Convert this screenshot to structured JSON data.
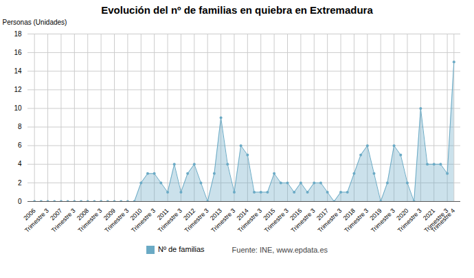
{
  "chart_data": {
    "type": "area",
    "title": "Evolución del nº de familias en quiebra en Extremadura",
    "ylabel": "Personas (Unidades)",
    "categories": [
      "2006",
      null,
      "Trimestre 3",
      null,
      "2007",
      null,
      "Trimestre 3",
      null,
      "2008",
      null,
      "Trimestre 3",
      null,
      "2009",
      null,
      "Trimestre 3",
      null,
      "2010",
      null,
      "Trimestre 3",
      null,
      "2011",
      null,
      "Trimestre 3",
      null,
      "2012",
      null,
      "Trimestre 3",
      null,
      "2013",
      null,
      "Trimestre 3",
      null,
      "2014",
      null,
      "Trimestre 3",
      null,
      "2015",
      null,
      "Trimestre 3",
      null,
      "2016",
      null,
      "Trimestre 3",
      null,
      "2017",
      null,
      "Trimestre 3",
      null,
      "2018",
      null,
      "Trimestre 3",
      null,
      "2019",
      null,
      "Trimestre 3",
      null,
      "2020",
      null,
      "Trimestre 3",
      null,
      "2021",
      null,
      "Trimestre 3",
      "Trimestre 4"
    ],
    "series": [
      {
        "name": "Nº de familias",
        "color": "#6aaac5",
        "values": [
          0,
          0,
          0,
          0,
          0,
          0,
          0,
          0,
          0,
          0,
          0,
          0,
          0,
          0,
          0,
          0,
          2,
          3,
          3,
          2,
          1,
          4,
          1,
          3,
          4,
          2,
          0,
          3,
          9,
          4,
          1,
          6,
          5,
          1,
          1,
          1,
          3,
          2,
          2,
          1,
          2,
          1,
          2,
          2,
          1,
          0,
          1,
          1,
          3,
          5,
          6,
          3,
          0,
          2,
          6,
          5,
          2,
          0,
          10,
          4,
          4,
          4,
          3,
          15
        ]
      }
    ],
    "ylim": [
      0,
      18
    ],
    "yticks": [
      0,
      2,
      4,
      6,
      8,
      10,
      12,
      14,
      16,
      18
    ],
    "grid": true,
    "legend": "bottom",
    "annotations": [
      "Fuente: INE, www.epdata.es"
    ]
  }
}
